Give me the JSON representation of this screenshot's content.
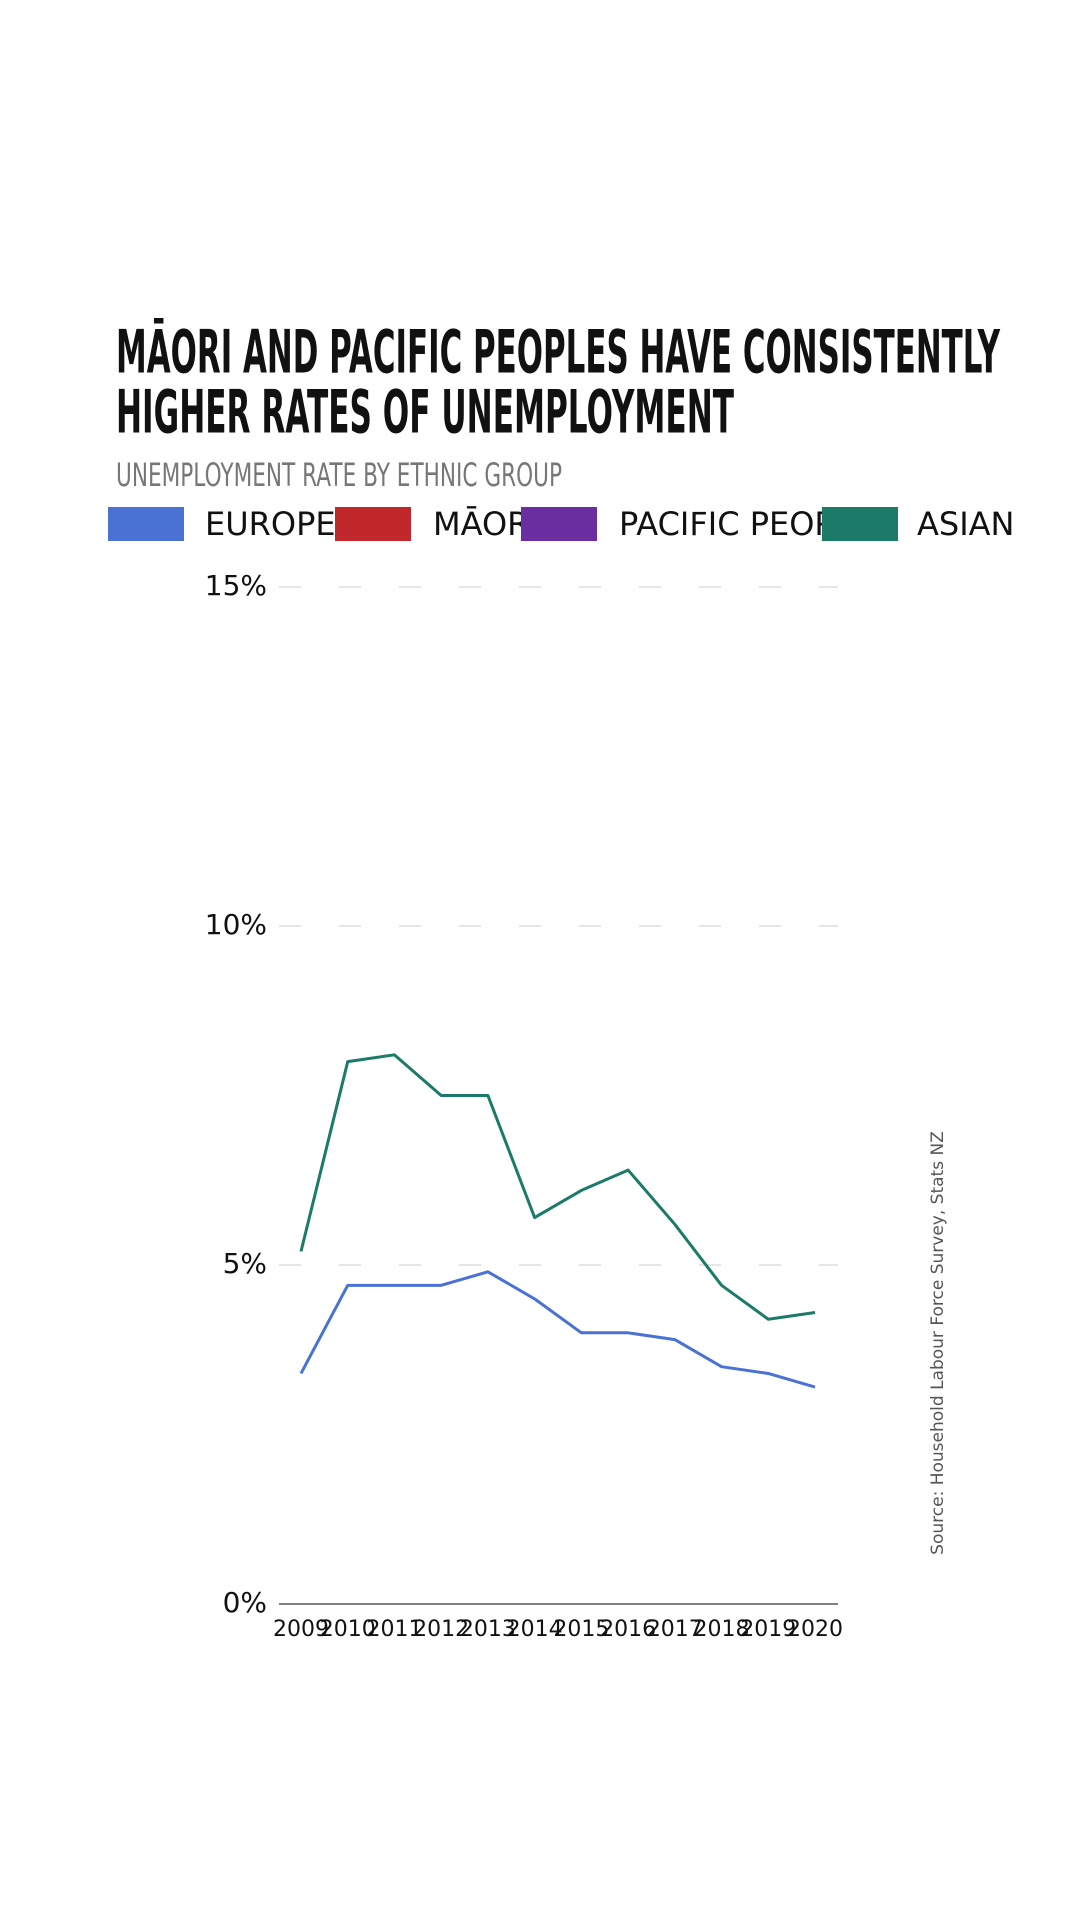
{
  "chart_data": {
    "type": "line",
    "title": [
      "MĀORI AND PACIFIC PEOPLES HAVE CONSISTENTLY",
      "HIGHER RATES OF UNEMPLOYMENT"
    ],
    "subtitle": "UNEMPLOYMENT RATE BY ETHNIC GROUP",
    "source": "Source: Household Labour Force Survey, Stats NZ",
    "categories": [
      "2009",
      "2010",
      "2011",
      "2012",
      "2013",
      "2014",
      "2015",
      "2016",
      "2017",
      "2018",
      "2019",
      "2020"
    ],
    "series": [
      {
        "name": "EUROPEAN",
        "color": "#4a72d4",
        "values": [
          3.4,
          4.7,
          4.7,
          4.7,
          4.9,
          4.5,
          4.0,
          4.0,
          3.9,
          3.5,
          3.4,
          3.2
        ]
      },
      {
        "name": "MĀORI",
        "color": "#c0282b",
        "values": [
          null,
          null,
          null,
          null,
          null,
          null,
          null,
          null,
          null,
          null,
          null,
          null
        ]
      },
      {
        "name": "PACIFIC PEOPLES",
        "color": "#6a2ea0",
        "values": [
          null,
          null,
          null,
          null,
          null,
          null,
          null,
          null,
          null,
          null,
          null,
          null
        ]
      },
      {
        "name": "ASIAN",
        "color": "#1b7a68",
        "values": [
          5.2,
          8.0,
          8.1,
          7.5,
          7.5,
          5.7,
          6.1,
          6.4,
          5.6,
          4.7,
          4.2,
          4.3
        ]
      }
    ],
    "ylim": [
      0,
      15
    ],
    "yticks": [
      {
        "value": 0,
        "label": "0%"
      },
      {
        "value": 5,
        "label": "5%"
      },
      {
        "value": 10,
        "label": "10%"
      },
      {
        "value": 15,
        "label": "15%"
      }
    ],
    "grid": true
  }
}
